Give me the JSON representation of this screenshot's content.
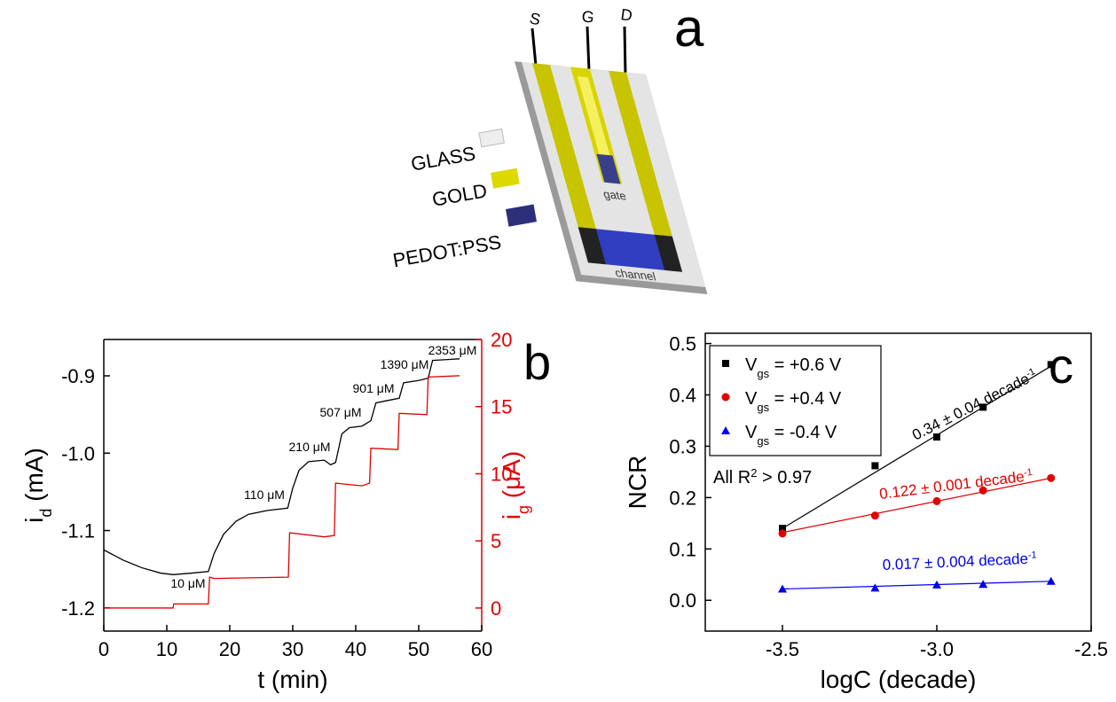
{
  "panel_labels": [
    "a",
    "b",
    "c"
  ],
  "device_diagram": {
    "terminals": [
      "S",
      "G",
      "D"
    ],
    "materials": [
      "GLASS",
      "GOLD",
      "PEDOT:PSS"
    ],
    "gate": "gate",
    "channel": "channel"
  },
  "chart_data": [
    {
      "type": "line",
      "x_label": "t (min)",
      "y_label": [
        "i",
        "d",
        " (mA)"
      ],
      "y2_label": [
        "i",
        "g",
        " (μA)"
      ],
      "xlim": [
        0,
        60
      ],
      "xticks": [
        0,
        10,
        20,
        30,
        40,
        50,
        60
      ],
      "ylim": [
        -1.23,
        -0.853
      ],
      "yticks": [
        -1.2,
        -1.1,
        {
          "value": -1.0,
          "label": "-1.0"
        },
        -0.9
      ],
      "y2lim": [
        -1.72,
        20
      ],
      "y2ticks": [
        0,
        5,
        10,
        15,
        20
      ],
      "series": [
        {
          "color": "#000000",
          "x": [
            0,
            3,
            6,
            9,
            11,
            14,
            16.6,
            17.5,
            19,
            21,
            23,
            26,
            29.2,
            30,
            31,
            32.5,
            35,
            36,
            36.8,
            37.8,
            39,
            41,
            42.4,
            43.2,
            45,
            46.9,
            47.6,
            50,
            51.5,
            52.2,
            56.5
          ],
          "values": [
            -1.125,
            -1.138,
            -1.148,
            -1.155,
            -1.157,
            -1.155,
            -1.153,
            -1.13,
            -1.105,
            -1.088,
            -1.079,
            -1.074,
            -1.071,
            -1.045,
            -1.022,
            -1.011,
            -1.009,
            -1.015,
            -1.012,
            -0.975,
            -0.967,
            -0.965,
            -0.958,
            -0.935,
            -0.932,
            -0.929,
            -0.909,
            -0.906,
            -0.903,
            -0.88,
            -0.878
          ]
        },
        {
          "color": "#e00000",
          "axis": "y2",
          "x": [
            0,
            11,
            11.1,
            16.6,
            16.8,
            17.5,
            29.3,
            29.5,
            35,
            36.6,
            36.8,
            41,
            42.2,
            42.4,
            46.7,
            46.9,
            51.3,
            51.5,
            56.5
          ],
          "values": [
            0,
            0,
            0.3,
            0.3,
            2.3,
            2.2,
            2.3,
            5.6,
            5.3,
            5.4,
            9.3,
            9.1,
            9.3,
            11.9,
            11.8,
            14.5,
            14.4,
            17.2,
            17.3
          ]
        }
      ],
      "annotations": [
        "10 μM",
        "110 μM",
        "210 μM",
        "507 μM",
        "901 μM",
        "1390 μM",
        "2353 μM"
      ]
    },
    {
      "type": "scatter",
      "x_label": "logC (decade)",
      "y_label": "NCR",
      "xlim": [
        -3.75,
        -2.5
      ],
      "xticks": [
        -3.5,
        {
          "value": -3.0,
          "label": "-3.0"
        },
        -2.5
      ],
      "ylim": [
        -0.06,
        0.52
      ],
      "yticks": [
        {
          "value": 0,
          "label": "0.0"
        },
        0.1,
        0.2,
        0.3,
        0.4,
        0.5
      ],
      "x": [
        -3.5,
        -3.2,
        -3.0,
        -2.85,
        -2.63
      ],
      "series": [
        {
          "name": [
            "V",
            "gs",
            " = +0.6 V"
          ],
          "color": "#000000",
          "marker": "square",
          "values": [
            0.14,
            0.262,
            0.318,
            0.376,
            0.459
          ],
          "fit": [
            0.14,
            0.456
          ]
        },
        {
          "name": [
            "V",
            "gs",
            " = +0.4 V"
          ],
          "color": "#e00000",
          "marker": "circle",
          "values": [
            0.13,
            0.165,
            0.193,
            0.214,
            0.238
          ],
          "fit": [
            0.132,
            0.238
          ]
        },
        {
          "name": [
            "V",
            "gs",
            " = -0.4 V"
          ],
          "color": "#0000ee",
          "marker": "triangle",
          "values": [
            0.022,
            0.024,
            0.03,
            0.031,
            0.037
          ],
          "fit": [
            0.022,
            0.037
          ]
        }
      ],
      "annotations": [
        [
          "0.34 ± 0.04 decade",
          "-1"
        ],
        [
          "0.122 ± 0.001 decade",
          "-1"
        ],
        [
          "0.017 ± 0.004 decade",
          "-1"
        ]
      ],
      "note": [
        "All R",
        "2",
        " > 0.97"
      ]
    }
  ]
}
